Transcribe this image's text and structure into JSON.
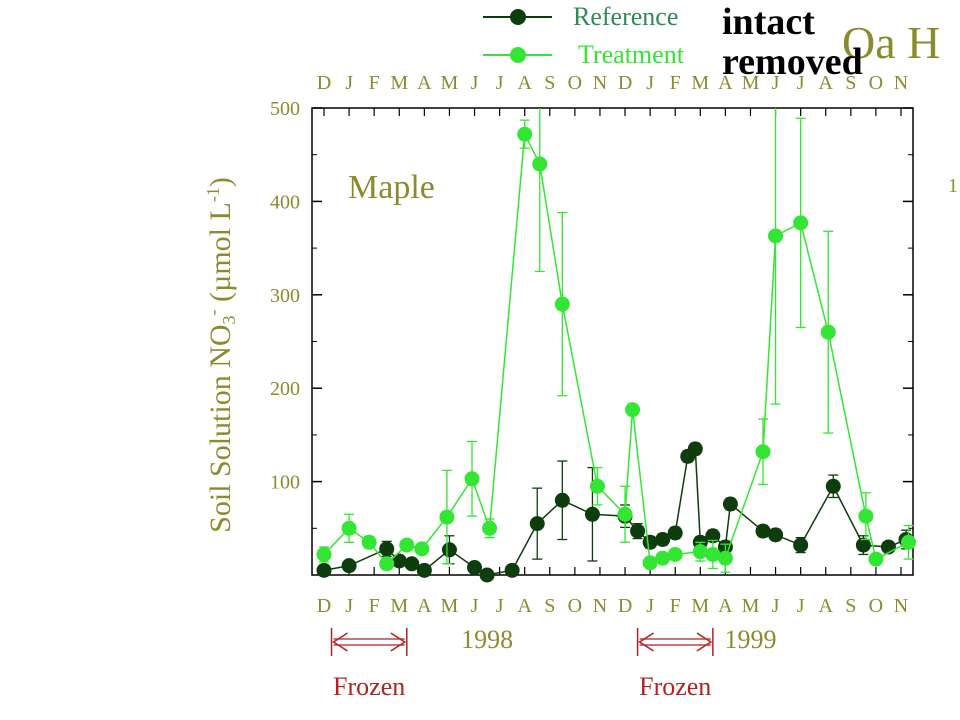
{
  "chart_data": {
    "type": "line",
    "panel_label": "Maple",
    "ylabel": "Soil Solution NO",
    "ylabel_sub": "3",
    "ylabel_sup": "-",
    "ylabel_unit": "(µmol L",
    "ylabel_unit_sup": "-1",
    "ylabel_close": ")",
    "ylim": [
      0,
      500
    ],
    "yticks": [
      "100",
      "200",
      "300",
      "400",
      "500"
    ],
    "xlim": [
      0,
      24
    ],
    "month_labels": [
      "D",
      "J",
      "F",
      "M",
      "A",
      "M",
      "J",
      "J",
      "A",
      "S",
      "O",
      "N",
      "D",
      "J",
      "F",
      "M",
      "A",
      "M",
      "J",
      "J",
      "A",
      "S",
      "O",
      "N"
    ],
    "year_labels": [
      {
        "text": "1998",
        "x": 6.5
      },
      {
        "text": "1999",
        "x": 17
      }
    ],
    "frozen_periods": [
      {
        "label": "Frozen",
        "x0": 0.3,
        "x1": 3.3
      },
      {
        "label": "Frozen",
        "x0": 12.5,
        "x1": 15.5
      }
    ],
    "right_axis_partial_label": "1",
    "corner_text": "Oa H",
    "legend": {
      "placement": "top",
      "entries": [
        {
          "name": "Reference",
          "note": "intact",
          "color": "#0d3d0d"
        },
        {
          "name": "Treatment",
          "note": "removed",
          "color": "#33e633"
        }
      ]
    },
    "series": [
      {
        "name": "Reference",
        "color": "#0d3d0d",
        "points": [
          {
            "x": 0.0,
            "y": 5,
            "err": 3
          },
          {
            "x": 1.0,
            "y": 10,
            "err": 4
          },
          {
            "x": 2.5,
            "y": 28,
            "err": 8
          },
          {
            "x": 3.0,
            "y": 15,
            "err": 5
          },
          {
            "x": 3.5,
            "y": 12,
            "err": 5
          },
          {
            "x": 4.0,
            "y": 5,
            "err": 3
          },
          {
            "x": 5.0,
            "y": 27,
            "err": 15
          },
          {
            "x": 6.0,
            "y": 8,
            "err": 5
          },
          {
            "x": 6.5,
            "y": 0,
            "err": 2
          },
          {
            "x": 7.5,
            "y": 5,
            "err": 4
          },
          {
            "x": 8.5,
            "y": 55,
            "err": 38
          },
          {
            "x": 9.5,
            "y": 80,
            "err": 42
          },
          {
            "x": 10.7,
            "y": 65,
            "err": 50
          },
          {
            "x": 12.0,
            "y": 63,
            "err": 12
          },
          {
            "x": 12.5,
            "y": 47,
            "err": 8
          },
          {
            "x": 13.0,
            "y": 35,
            "err": 6
          },
          {
            "x": 13.5,
            "y": 38,
            "err": 6
          },
          {
            "x": 14.0,
            "y": 45,
            "err": 6
          },
          {
            "x": 14.5,
            "y": 127,
            "err": 6
          },
          {
            "x": 14.8,
            "y": 135,
            "err": 6
          },
          {
            "x": 15.0,
            "y": 35,
            "err": 6
          },
          {
            "x": 15.5,
            "y": 42,
            "err": 6
          },
          {
            "x": 16.0,
            "y": 30,
            "err": 6
          },
          {
            "x": 16.2,
            "y": 76,
            "err": 6
          },
          {
            "x": 17.5,
            "y": 47,
            "err": 6
          },
          {
            "x": 18.0,
            "y": 43,
            "err": 6
          },
          {
            "x": 19.0,
            "y": 32,
            "err": 8
          },
          {
            "x": 20.3,
            "y": 95,
            "err": 12
          },
          {
            "x": 21.5,
            "y": 32,
            "err": 10
          },
          {
            "x": 22.5,
            "y": 30,
            "err": 5
          },
          {
            "x": 23.2,
            "y": 38,
            "err": 10
          }
        ]
      },
      {
        "name": "Treatment",
        "color": "#33e633",
        "points": [
          {
            "x": 0.0,
            "y": 22,
            "err": 8
          },
          {
            "x": 1.0,
            "y": 50,
            "err": 15
          },
          {
            "x": 1.8,
            "y": 35,
            "err": 6
          },
          {
            "x": 2.5,
            "y": 12,
            "err": 5
          },
          {
            "x": 3.3,
            "y": 32,
            "err": 5
          },
          {
            "x": 3.9,
            "y": 28,
            "err": 5
          },
          {
            "x": 4.9,
            "y": 62,
            "err": 50
          },
          {
            "x": 5.9,
            "y": 103,
            "err": 40
          },
          {
            "x": 6.6,
            "y": 50,
            "err": 10
          },
          {
            "x": 8.0,
            "y": 472,
            "err": 15
          },
          {
            "x": 8.6,
            "y": 440,
            "err": 115
          },
          {
            "x": 9.5,
            "y": 290,
            "err": 98
          },
          {
            "x": 10.9,
            "y": 95,
            "err": 20
          },
          {
            "x": 12.0,
            "y": 65,
            "err": 30
          },
          {
            "x": 12.3,
            "y": 177,
            "err": 5
          },
          {
            "x": 13.0,
            "y": 13,
            "err": 5
          },
          {
            "x": 13.5,
            "y": 18,
            "err": 5
          },
          {
            "x": 14.0,
            "y": 22,
            "err": 5
          },
          {
            "x": 15.0,
            "y": 25,
            "err": 10
          },
          {
            "x": 15.5,
            "y": 22,
            "err": 15
          },
          {
            "x": 16.0,
            "y": 18,
            "err": 15
          },
          {
            "x": 17.5,
            "y": 132,
            "err": 35
          },
          {
            "x": 18.0,
            "y": 363,
            "err": 180
          },
          {
            "x": 19.0,
            "y": 377,
            "err": 112
          },
          {
            "x": 20.1,
            "y": 260,
            "err": 108
          },
          {
            "x": 21.6,
            "y": 63,
            "err": 25
          },
          {
            "x": 22.0,
            "y": 17,
            "err": 5
          },
          {
            "x": 23.3,
            "y": 35,
            "err": 18
          }
        ]
      }
    ]
  }
}
